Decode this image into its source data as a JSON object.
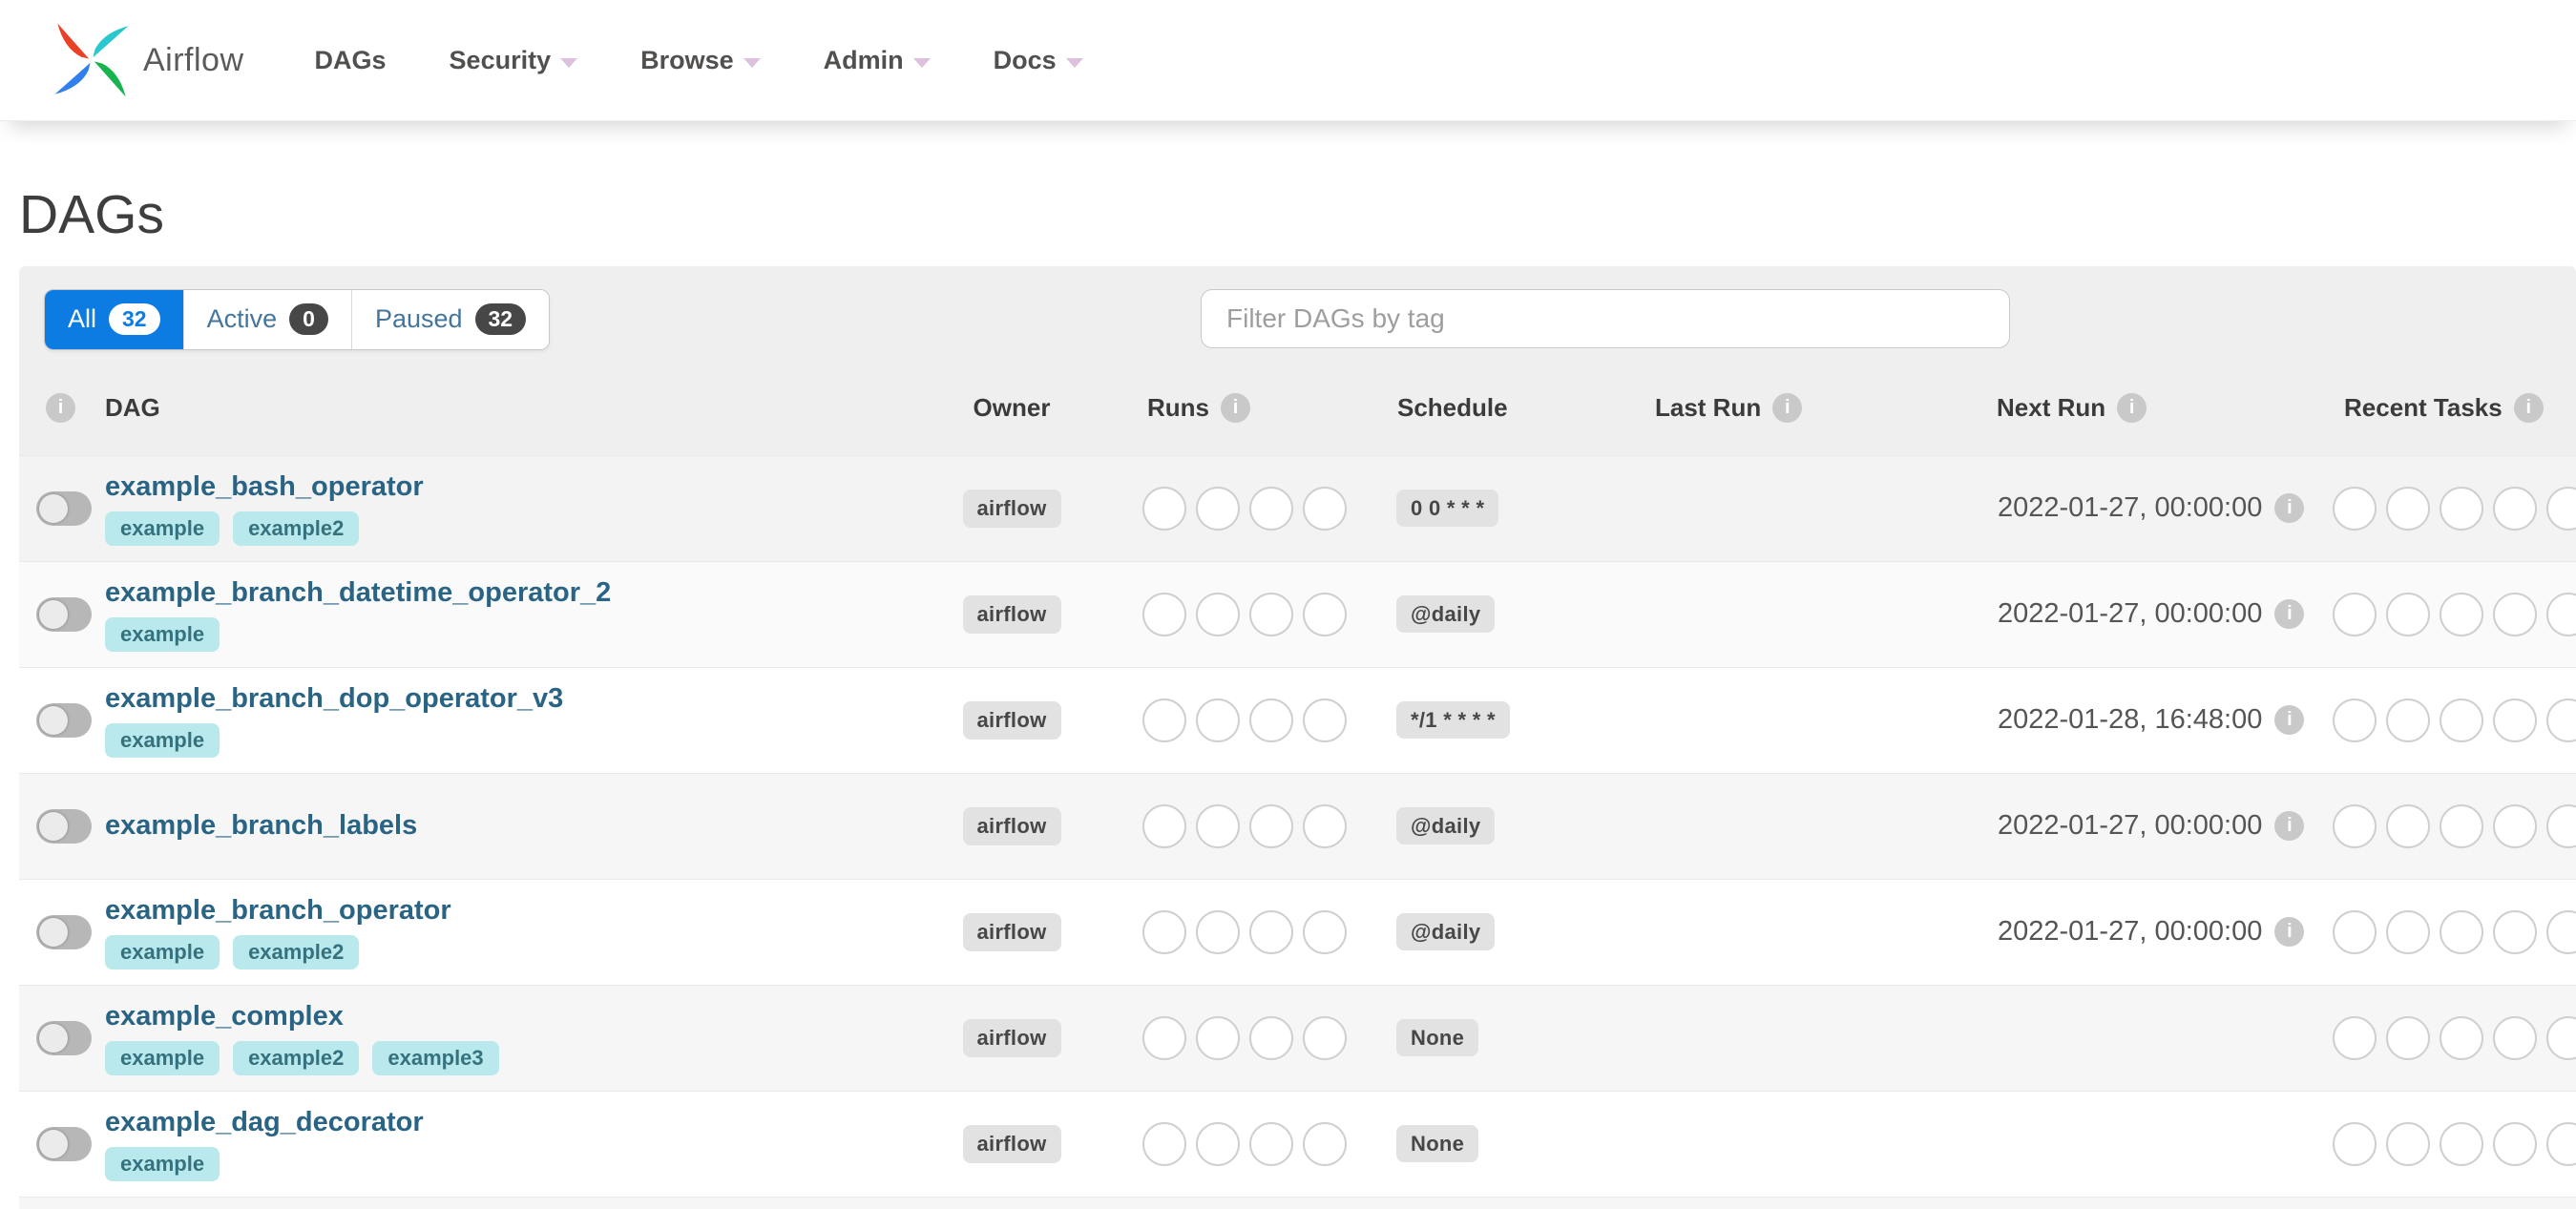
{
  "navbar": {
    "brand": "Airflow",
    "items": [
      {
        "label": "DAGs",
        "caret": false
      },
      {
        "label": "Security",
        "caret": true
      },
      {
        "label": "Browse",
        "caret": true
      },
      {
        "label": "Admin",
        "caret": true
      },
      {
        "label": "Docs",
        "caret": true
      }
    ]
  },
  "page": {
    "title": "DAGs"
  },
  "toolbar": {
    "tabs": [
      {
        "label": "All",
        "count": "32",
        "active": true
      },
      {
        "label": "Active",
        "count": "0",
        "active": false
      },
      {
        "label": "Paused",
        "count": "32",
        "active": false
      }
    ],
    "filter_placeholder": "Filter DAGs by tag"
  },
  "table": {
    "columns": [
      {
        "key": "toggle",
        "label": "",
        "info": true
      },
      {
        "key": "dag",
        "label": "DAG",
        "info": false
      },
      {
        "key": "owner",
        "label": "Owner",
        "info": false
      },
      {
        "key": "runs",
        "label": "Runs",
        "info": true
      },
      {
        "key": "schedule",
        "label": "Schedule",
        "info": false
      },
      {
        "key": "lastrun",
        "label": "Last Run",
        "info": true
      },
      {
        "key": "nextrun",
        "label": "Next Run",
        "info": true
      },
      {
        "key": "recent",
        "label": "Recent Tasks",
        "info": true
      }
    ],
    "runs_placeholder_count": 4,
    "recent_placeholder_count": 5,
    "rows": [
      {
        "name": "example_bash_operator",
        "tags": [
          "example",
          "example2"
        ],
        "owner": "airflow",
        "schedule": "0 0 * * *",
        "last_run": "",
        "next_run": "2022-01-27, 00:00:00"
      },
      {
        "name": "example_branch_datetime_operator_2",
        "tags": [
          "example"
        ],
        "owner": "airflow",
        "schedule": "@daily",
        "last_run": "",
        "next_run": "2022-01-27, 00:00:00"
      },
      {
        "name": "example_branch_dop_operator_v3",
        "tags": [
          "example"
        ],
        "owner": "airflow",
        "schedule": "*/1 * * * *",
        "last_run": "",
        "next_run": "2022-01-28, 16:48:00"
      },
      {
        "name": "example_branch_labels",
        "tags": [],
        "owner": "airflow",
        "schedule": "@daily",
        "last_run": "",
        "next_run": "2022-01-27, 00:00:00"
      },
      {
        "name": "example_branch_operator",
        "tags": [
          "example",
          "example2"
        ],
        "owner": "airflow",
        "schedule": "@daily",
        "last_run": "",
        "next_run": "2022-01-27, 00:00:00"
      },
      {
        "name": "example_complex",
        "tags": [
          "example",
          "example2",
          "example3"
        ],
        "owner": "airflow",
        "schedule": "None",
        "last_run": "",
        "next_run": ""
      },
      {
        "name": "example_dag_decorator",
        "tags": [
          "example"
        ],
        "owner": "airflow",
        "schedule": "None",
        "last_run": "",
        "next_run": ""
      }
    ]
  },
  "colors": {
    "accent_blue": "#0d7ce2",
    "dag_link": "#2a6485",
    "tag_bg": "#b9e9ec",
    "tag_text": "#35727e",
    "badge_bg": "#e2e2e2",
    "logo_red": "#ea4026",
    "logo_cyan": "#2bc7cf",
    "logo_green": "#17b34f",
    "logo_blue": "#2f80ed"
  }
}
